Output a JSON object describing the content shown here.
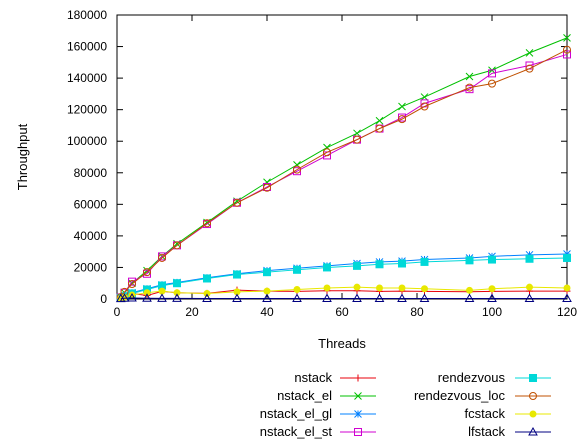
{
  "chart_data": {
    "type": "line",
    "xlabel": "Threads",
    "ylabel": "Throughput",
    "xlim": [
      0,
      120
    ],
    "ylim": [
      0,
      180000
    ],
    "xticks": [
      "0",
      "20",
      "40",
      "60",
      "80",
      "100",
      "120"
    ],
    "yticks": [
      "0",
      "20000",
      "40000",
      "60000",
      "80000",
      "100000",
      "120000",
      "140000",
      "160000",
      "180000"
    ],
    "grid": false,
    "legend_position": "bottom",
    "series": [
      {
        "name": "nstack",
        "color": "#e8000b",
        "marker": "plus",
        "x": [
          1,
          2,
          4,
          8,
          12,
          16,
          24,
          32,
          40,
          48,
          56,
          64,
          70,
          76,
          82,
          94,
          100,
          110,
          120
        ],
        "y": [
          500,
          1500,
          3500,
          2200,
          4800,
          4000,
          3600,
          5600,
          5000,
          4800,
          5200,
          5200,
          4800,
          5000,
          4800,
          4600,
          4800,
          5000,
          5000
        ]
      },
      {
        "name": "nstack_el",
        "color": "#00c000",
        "marker": "x",
        "x": [
          1,
          2,
          4,
          8,
          12,
          16,
          24,
          32,
          40,
          48,
          56,
          64,
          70,
          76,
          82,
          94,
          100,
          110,
          120
        ],
        "y": [
          1000,
          4000,
          10000,
          18000,
          27000,
          35000,
          48500,
          62000,
          74000,
          85000,
          96000,
          105000,
          113000,
          122000,
          128000,
          141000,
          145000,
          156000,
          165500
        ]
      },
      {
        "name": "nstack_el_gl",
        "color": "#0080ff",
        "marker": "star",
        "x": [
          1,
          2,
          4,
          8,
          12,
          16,
          24,
          32,
          40,
          48,
          56,
          64,
          70,
          76,
          82,
          94,
          100,
          110,
          120
        ],
        "y": [
          800,
          2000,
          4000,
          6500,
          9000,
          10500,
          13500,
          16000,
          18000,
          19500,
          21000,
          22500,
          23500,
          24000,
          25000,
          26000,
          27000,
          28000,
          28500
        ]
      },
      {
        "name": "nstack_el_st",
        "color": "#d000d0",
        "marker": "square",
        "x": [
          1,
          2,
          4,
          8,
          12,
          16,
          24,
          32,
          40,
          48,
          56,
          64,
          70,
          76,
          82,
          94,
          100,
          110,
          120
        ],
        "y": [
          1000,
          4000,
          11000,
          16000,
          27000,
          34000,
          47500,
          61000,
          71000,
          81000,
          91000,
          101000,
          108000,
          115000,
          124000,
          133000,
          143000,
          148000,
          155000
        ]
      },
      {
        "name": "rendezvous",
        "color": "#00d8d8",
        "marker": "filled-square",
        "x": [
          1,
          2,
          4,
          8,
          12,
          16,
          24,
          32,
          40,
          48,
          56,
          64,
          70,
          76,
          82,
          94,
          100,
          110,
          120
        ],
        "y": [
          700,
          1800,
          3500,
          6000,
          8500,
          10000,
          13000,
          15500,
          17000,
          18500,
          20000,
          21000,
          22000,
          22500,
          23500,
          24500,
          25000,
          25500,
          26000
        ]
      },
      {
        "name": "rendezvous_loc",
        "color": "#c05000",
        "marker": "circle",
        "x": [
          1,
          2,
          4,
          8,
          12,
          16,
          24,
          32,
          40,
          48,
          56,
          64,
          70,
          76,
          82,
          94,
          100,
          110,
          120
        ],
        "y": [
          1200,
          4500,
          9500,
          17000,
          26000,
          34000,
          48000,
          61000,
          70500,
          82000,
          93000,
          101000,
          108000,
          114000,
          122000,
          134000,
          136500,
          146000,
          158000
        ]
      },
      {
        "name": "fcstack",
        "color": "#e8e800",
        "marker": "filled-circle",
        "x": [
          1,
          2,
          4,
          8,
          12,
          16,
          24,
          32,
          40,
          48,
          56,
          64,
          70,
          76,
          82,
          94,
          100,
          110,
          120
        ],
        "y": [
          300,
          1000,
          2500,
          4000,
          5000,
          4000,
          3500,
          4500,
          5000,
          6000,
          7000,
          7500,
          7000,
          7000,
          6500,
          5500,
          6500,
          7500,
          7000
        ]
      },
      {
        "name": "lfstack",
        "color": "#000080",
        "marker": "triangle",
        "x": [
          1,
          2,
          4,
          8,
          12,
          16,
          24,
          32,
          40,
          48,
          56,
          64,
          70,
          76,
          82,
          94,
          100,
          110,
          120
        ],
        "y": [
          200,
          500,
          600,
          500,
          400,
          400,
          300,
          300,
          300,
          300,
          300,
          300,
          300,
          300,
          300,
          300,
          300,
          300,
          300
        ]
      }
    ]
  }
}
